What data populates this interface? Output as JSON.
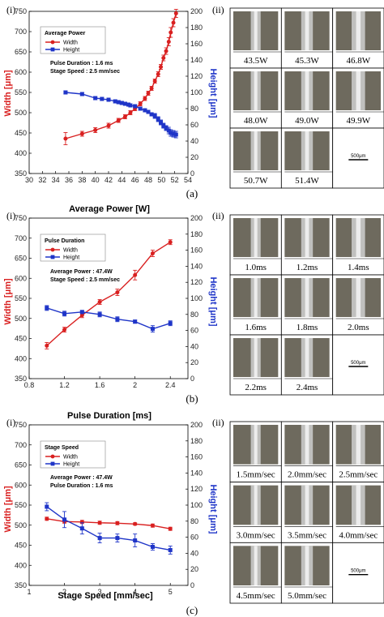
{
  "figure": {
    "panels": [
      {
        "caption": "(a)",
        "roman_left": "(i)",
        "roman_right": "(ii)",
        "top_xlabel": "",
        "legend": {
          "title": "Average Power",
          "items": [
            "Width",
            "Height"
          ]
        },
        "notes": [
          "Pulse Duration : 1.6 ms",
          "Stage Speed : 2.5 mm/sec"
        ],
        "images": [
          "43.5W",
          "45.3W",
          "46.8W",
          "48.0W",
          "49.0W",
          "49.9W",
          "50.7W",
          "51.4W"
        ],
        "scale_bar": "500μm"
      },
      {
        "caption": "(b)",
        "roman_left": "(i)",
        "roman_right": "(ii)",
        "top_xlabel": "Average Power [W]",
        "legend": {
          "title": "Pulse Duration",
          "items": [
            "Width",
            "Height"
          ]
        },
        "notes": [
          "Average Power : 47.4W",
          "Stage Speed : 2.5 mm/sec"
        ],
        "images": [
          "1.0ms",
          "1.2ms",
          "1.4ms",
          "1.6ms",
          "1.8ms",
          "2.0ms",
          "2.2ms",
          "2.4ms"
        ],
        "scale_bar": "500μm"
      },
      {
        "caption": "(c)",
        "roman_left": "(i)",
        "roman_right": "(ii)",
        "top_xlabel": "Pulse Duration [ms]",
        "legend": {
          "title": "Stage Speed",
          "items": [
            "Width",
            "Height"
          ]
        },
        "notes": [
          "Average Power : 47.4W",
          "Pulse Duration : 1.6 ms"
        ],
        "images": [
          "1.5mm/sec",
          "2.0mm/sec",
          "2.5mm/sec",
          "3.0mm/sec",
          "3.5mm/sec",
          "4.0mm/sec",
          "4.5mm/sec",
          "5.0mm/sec"
        ],
        "scale_bar": "500μm"
      }
    ],
    "bottom_xlabel": "Stage Speed [mm/sec]",
    "colors": {
      "width": "#d92020",
      "height": "#1f35c8",
      "image_bg": "#6e6a5e",
      "bead": "#cfcfcf"
    }
  },
  "chart_data": [
    {
      "type": "line",
      "xlabel": "",
      "ylabel": "Width [μm]",
      "y2label": "Height [μm]",
      "xlim": [
        30,
        54
      ],
      "xticks": [
        30,
        32,
        34,
        36,
        38,
        40,
        42,
        44,
        46,
        48,
        50,
        52,
        54
      ],
      "ylim": [
        350,
        750
      ],
      "yticks": [
        350,
        400,
        450,
        500,
        550,
        600,
        650,
        700,
        750
      ],
      "y2lim": [
        0,
        200
      ],
      "y2ticks": [
        0,
        20,
        40,
        60,
        80,
        100,
        120,
        140,
        160,
        180,
        200
      ],
      "series": [
        {
          "name": "Width",
          "axis": "left",
          "x": [
            35.5,
            38,
            40,
            42,
            43.5,
            44.5,
            45.3,
            46,
            46.8,
            47.5,
            48,
            48.5,
            49,
            49.5,
            49.9,
            50.3,
            50.7,
            51.1,
            51.4,
            51.8,
            52.2
          ],
          "y": [
            436,
            448,
            457,
            468,
            481,
            490,
            500,
            510,
            522,
            535,
            548,
            560,
            578,
            595,
            613,
            635,
            652,
            675,
            698,
            722,
            745
          ],
          "err": [
            15,
            6,
            6,
            6,
            5,
            5,
            5,
            5,
            5,
            5,
            5,
            5,
            5,
            6,
            6,
            7,
            8,
            10,
            12,
            10,
            10
          ]
        },
        {
          "name": "Height",
          "axis": "right",
          "x": [
            35.5,
            38,
            40,
            41,
            42,
            43,
            43.5,
            44,
            44.5,
            45,
            45.3,
            46,
            46.8,
            47.5,
            48,
            48.5,
            49,
            49.5,
            49.9,
            50.3,
            50.7,
            51.1,
            51.4,
            51.8,
            52.2
          ],
          "y": [
            100,
            98,
            93,
            92,
            91,
            89,
            88,
            87,
            86,
            85,
            84,
            83,
            80,
            78,
            76,
            73,
            71,
            67,
            63,
            59,
            56,
            53,
            50,
            49,
            48
          ],
          "err": [
            2,
            2,
            2,
            2,
            2,
            2,
            2,
            2,
            2,
            2,
            2,
            2,
            2,
            2,
            2,
            2,
            3,
            3,
            3,
            3,
            3,
            4,
            4,
            4,
            4
          ]
        }
      ]
    },
    {
      "type": "line",
      "xlabel": "",
      "ylabel": "Width [μm]",
      "y2label": "Height [μm]",
      "xlim": [
        0.8,
        2.6
      ],
      "xticks": [
        0.8,
        1.2,
        1.6,
        2,
        2.4
      ],
      "ylim": [
        350,
        750
      ],
      "yticks": [
        350,
        400,
        450,
        500,
        550,
        600,
        650,
        700,
        750
      ],
      "y2lim": [
        0,
        200
      ],
      "y2ticks": [
        0,
        20,
        40,
        60,
        80,
        100,
        120,
        140,
        160,
        180,
        200
      ],
      "series": [
        {
          "name": "Width",
          "axis": "left",
          "x": [
            1.0,
            1.2,
            1.4,
            1.6,
            1.8,
            2.0,
            2.2,
            2.4
          ],
          "y": [
            432,
            472,
            508,
            541,
            565,
            608,
            662,
            690
          ],
          "err": [
            8,
            6,
            6,
            6,
            8,
            12,
            8,
            6
          ]
        },
        {
          "name": "Height",
          "axis": "right",
          "x": [
            1.0,
            1.2,
            1.4,
            1.6,
            1.8,
            2.0,
            2.2,
            2.4
          ],
          "y": [
            88,
            81,
            83,
            80,
            74,
            71,
            62,
            69
          ],
          "err": [
            3,
            3,
            2,
            3,
            3,
            2,
            4,
            3
          ]
        }
      ]
    },
    {
      "type": "line",
      "xlabel": "Stage Speed [mm/sec]",
      "ylabel": "Width [μm]",
      "y2label": "Height [μm]",
      "xlim": [
        1,
        5.5
      ],
      "xticks": [
        1,
        2,
        3,
        4,
        5
      ],
      "ylim": [
        350,
        750
      ],
      "yticks": [
        350,
        400,
        450,
        500,
        550,
        600,
        650,
        700,
        750
      ],
      "y2lim": [
        0,
        200
      ],
      "y2ticks": [
        0,
        20,
        40,
        60,
        80,
        100,
        120,
        140,
        160,
        180,
        200
      ],
      "series": [
        {
          "name": "Width",
          "axis": "left",
          "x": [
            1.5,
            2.0,
            2.5,
            3.0,
            3.5,
            4.0,
            4.5,
            5.0
          ],
          "y": [
            516,
            509,
            508,
            506,
            505,
            503,
            499,
            491
          ],
          "err": [
            4,
            4,
            4,
            4,
            4,
            3,
            4,
            4
          ]
        },
        {
          "name": "Height",
          "axis": "right",
          "x": [
            1.5,
            2.0,
            2.5,
            3.0,
            3.5,
            4.0,
            4.5,
            5.0
          ],
          "y": [
            98,
            82,
            71,
            59,
            59,
            56,
            48,
            44
          ],
          "err": [
            5,
            10,
            7,
            6,
            5,
            8,
            4,
            5
          ]
        }
      ]
    }
  ]
}
